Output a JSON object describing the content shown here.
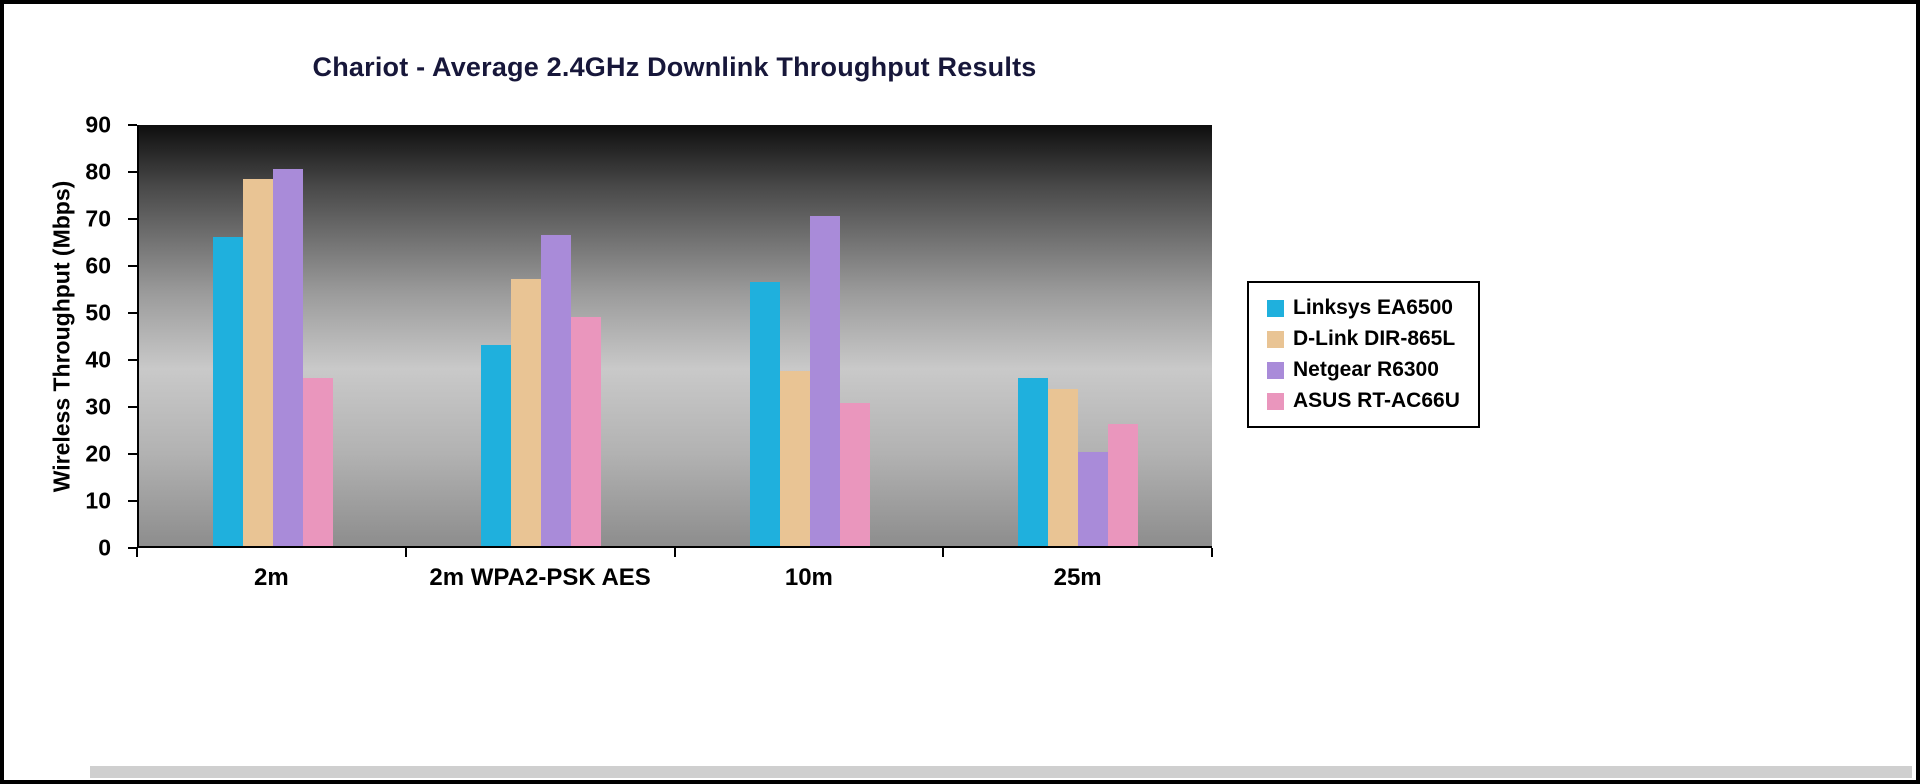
{
  "chart_data": {
    "type": "bar",
    "title": "Chariot - Average 2.4GHz Downlink Throughput Results",
    "ylabel": "Wireless Throughput (Mbps)",
    "xlabel": "",
    "categories": [
      "2m",
      "2m WPA2-PSK AES",
      "10m",
      "25m"
    ],
    "series": [
      {
        "name": "Linksys EA6500",
        "color": "#1fb0dd",
        "values": [
          66,
          43,
          56.5,
          36
        ]
      },
      {
        "name": "D-Link DIR-865L",
        "color": "#e9c494",
        "values": [
          78.5,
          57,
          37.5,
          33.5
        ]
      },
      {
        "name": "Netgear R6300",
        "color": "#a98bd9",
        "values": [
          80.5,
          66.5,
          70.5,
          20
        ]
      },
      {
        "name": "ASUS RT-AC66U",
        "color": "#ea96bd",
        "values": [
          36,
          49,
          30.5,
          26
        ]
      }
    ],
    "ylim": [
      0,
      90
    ],
    "ytick_step": 10,
    "grid": false,
    "legend_position": "right",
    "plot_background": "gray-vertical-gradient",
    "title_color": "#17173a"
  }
}
